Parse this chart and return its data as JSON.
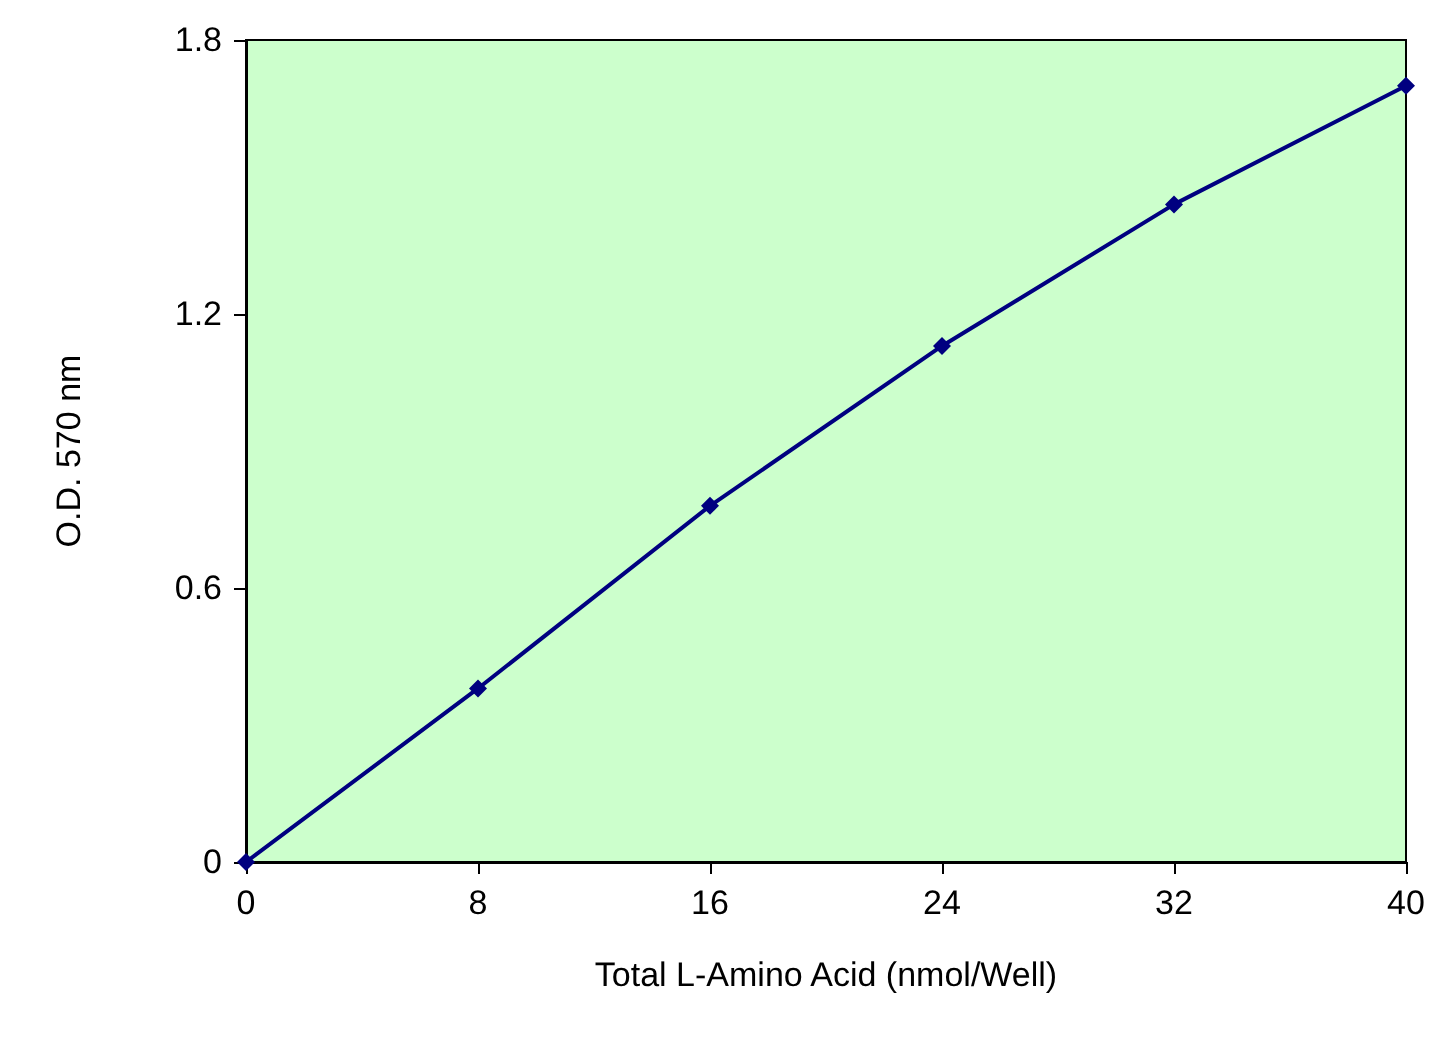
{
  "chart_data": {
    "type": "line",
    "xlabel": "Total L-Amino Acid (nmol/Well)",
    "ylabel": "O.D. 570 nm",
    "x": [
      0,
      8,
      16,
      24,
      32,
      40
    ],
    "series": [
      {
        "color": "#000080",
        "values": [
          0,
          0.38,
          0.78,
          1.13,
          1.44,
          1.7
        ]
      }
    ],
    "xlim": [
      0,
      40
    ],
    "xticks": [
      0,
      8,
      16,
      24,
      32,
      40
    ],
    "ylim": [
      0,
      1.8
    ],
    "yticks": [
      0,
      0.6,
      1.2,
      1.8
    ],
    "grid": false,
    "marker": "diamond",
    "line_style": "solid"
  }
}
